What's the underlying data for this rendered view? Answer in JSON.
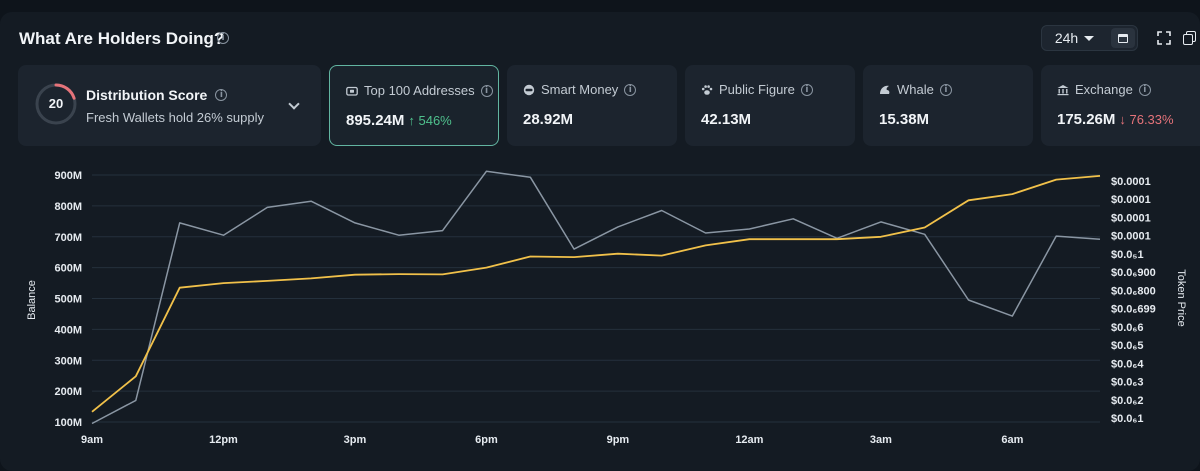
{
  "header": {
    "title": "What Are Holders Doing?",
    "timeframe": "24h"
  },
  "distribution": {
    "score": "20",
    "title": "Distribution Score",
    "subtitle": "Fresh Wallets hold 26% supply",
    "score_fraction": 0.2
  },
  "cards": [
    {
      "label": "Top 100 Addresses",
      "value": "895.24M",
      "change": "↑ 546%",
      "direction": "up",
      "icon": "wallet-icon"
    },
    {
      "label": "Smart Money",
      "value": "28.92M",
      "change": "",
      "direction": "",
      "icon": "smart-money-icon"
    },
    {
      "label": "Public Figure",
      "value": "42.13M",
      "change": "",
      "direction": "",
      "icon": "paw-icon"
    },
    {
      "label": "Whale",
      "value": "15.38M",
      "change": "",
      "direction": "",
      "icon": "whale-icon"
    },
    {
      "label": "Exchange",
      "value": "175.26M",
      "change": "↓ 76.33%",
      "direction": "down",
      "icon": "bank-icon"
    }
  ],
  "colors": {
    "balance_line": "#8a96a3",
    "price_line": "#f1c14a",
    "accent_teal": "#62b5a1",
    "up": "#4fc08d",
    "down": "#e5737a"
  },
  "chart_data": {
    "type": "line",
    "xlabel": "",
    "ylabel": "Balance",
    "ylabel_right": "Token Price",
    "x_ticks": [
      "9am",
      "12pm",
      "3pm",
      "6pm",
      "9pm",
      "12am",
      "3am",
      "6am"
    ],
    "ylim": [
      100,
      900
    ],
    "y_ticks_left": [
      "900M",
      "800M",
      "700M",
      "600M",
      "500M",
      "400M",
      "300M",
      "200M",
      "100M"
    ],
    "y_ticks_right": [
      "$0.0001",
      "$0.0001",
      "$0.0001",
      "$0.0001",
      "$0.0₅1",
      "$0.0₆900",
      "$0.0₆800",
      "$0.0₆699",
      "$0.0₆6",
      "$0.0₆5",
      "$0.0₆4",
      "$0.0₆3",
      "$0.0₆2",
      "$0.0₆1"
    ],
    "grid": true,
    "x_hours": [
      0,
      1,
      2,
      3,
      4,
      5,
      6,
      7,
      8,
      9,
      10,
      11,
      12,
      13,
      14,
      15,
      16,
      17,
      18,
      19,
      20,
      21,
      22,
      23
    ],
    "series": [
      {
        "name": "",
        "axis": "left",
        "color": "#8a96a3",
        "values": [
          95,
          170,
          745,
          705,
          795,
          815,
          745,
          705,
          720,
          912,
          893,
          660,
          732,
          785,
          712,
          725,
          758,
          695,
          748,
          708,
          495,
          443,
          702,
          692
        ]
      },
      {
        "name": "",
        "axis": "left",
        "color": "#f1c14a",
        "values": [
          133,
          248,
          535,
          550,
          557,
          565,
          577,
          579,
          578,
          600,
          636,
          634,
          645,
          639,
          672,
          692,
          692,
          692,
          700,
          730,
          818,
          838,
          885,
          897
        ]
      }
    ]
  }
}
